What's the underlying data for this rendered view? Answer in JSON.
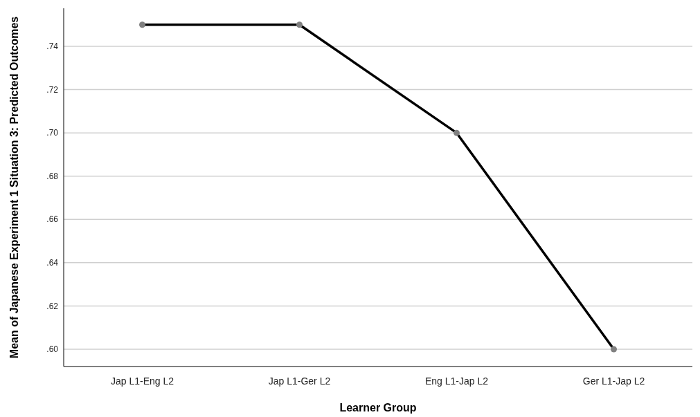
{
  "chart_data": {
    "type": "line",
    "xlabel": "Learner Group",
    "ylabel": "Mean of Japanese Experiment 1 Situation 3: Predicted Outcomes",
    "categories": [
      "Jap L1-Eng L2",
      "Jap L1-Ger L2",
      "Eng L1-Jap L2",
      "Ger L1-Jap L2"
    ],
    "series": [
      {
        "color": "#000000",
        "values": [
          0.75,
          0.75,
          0.7,
          0.6
        ]
      }
    ],
    "ylim": [
      0.592,
      0.7576
    ],
    "yticks": [
      {
        "value": 0.6,
        "label": ".60"
      },
      {
        "value": 0.62,
        "label": ".62"
      },
      {
        "value": 0.64,
        "label": ".64"
      },
      {
        "value": 0.66,
        "label": ".66"
      },
      {
        "value": 0.68,
        "label": ".68"
      },
      {
        "value": 0.7,
        "label": ".70"
      },
      {
        "value": 0.72,
        "label": ".72"
      },
      {
        "value": 0.74,
        "label": ".74"
      }
    ],
    "grid": "y",
    "marker": "circle",
    "line_style": "solid"
  }
}
